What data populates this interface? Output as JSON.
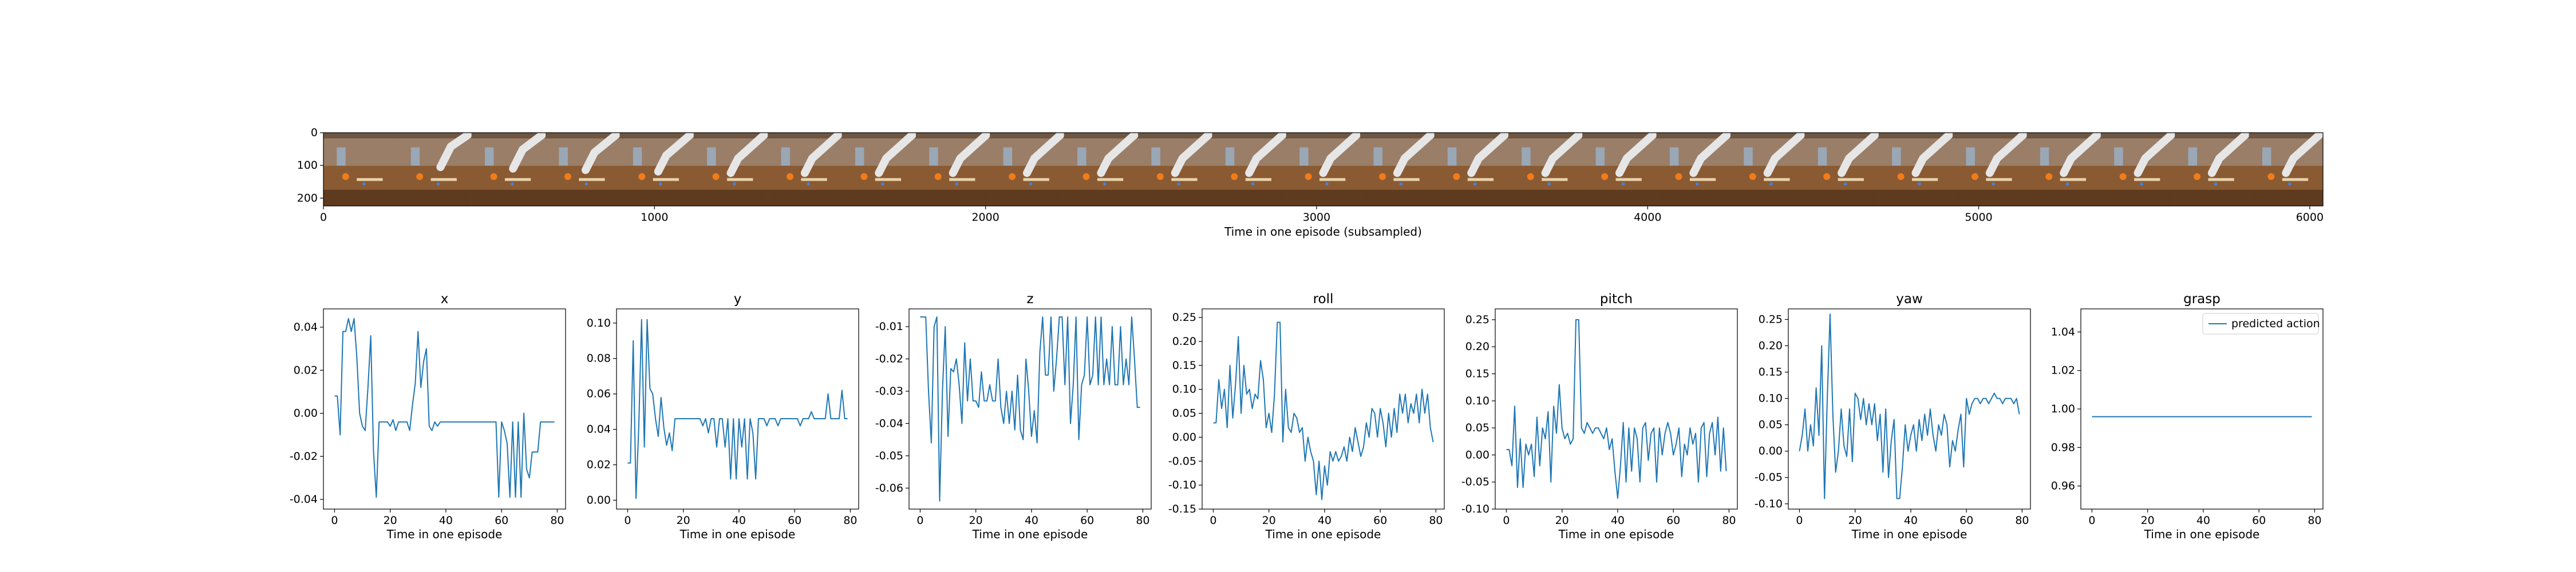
{
  "strip": {
    "xlabel": "Time in one episode (subsampled)",
    "xticks": [
      0,
      1000,
      2000,
      3000,
      4000,
      5000,
      6000
    ],
    "yticks": [
      0,
      100,
      200
    ],
    "xlim": [
      0,
      6040
    ],
    "ylim": [
      224,
      0
    ],
    "frame_count": 27,
    "colors": {
      "wall": "#9a7e68",
      "wall_dark": "#6f5642",
      "table": "#8a5a33",
      "table_dark": "#5e3a1e",
      "robot": "#e6e6e6",
      "orange": "#f07c1a",
      "blue": "#4a7fd0"
    }
  },
  "chart_data": [
    {
      "type": "line",
      "title": "x",
      "xlabel": "Time in one episode",
      "xlim": [
        -4,
        83
      ],
      "ylim": [
        -0.0445,
        0.0485
      ],
      "xticks": [
        0,
        20,
        40,
        60,
        80
      ],
      "yticks": [
        -0.04,
        -0.02,
        0.0,
        0.02,
        0.04
      ],
      "ytick_labels": [
        "-0.04",
        "-0.02",
        "0.00",
        "0.02",
        "0.04"
      ],
      "color": "#1f77b4",
      "values": [
        0.008,
        0.008,
        -0.01,
        0.038,
        0.038,
        0.044,
        0.038,
        0.044,
        0.026,
        0.0,
        -0.006,
        -0.008,
        0.012,
        0.036,
        -0.018,
        -0.039,
        -0.004,
        -0.004,
        -0.004,
        -0.004,
        -0.006,
        -0.003,
        -0.008,
        -0.004,
        -0.004,
        -0.004,
        -0.004,
        -0.008,
        0.004,
        0.014,
        0.038,
        0.012,
        0.024,
        0.03,
        -0.006,
        -0.008,
        -0.004,
        -0.006,
        -0.004,
        -0.004,
        -0.004,
        -0.004,
        -0.004,
        -0.004,
        -0.004,
        -0.004,
        -0.004,
        -0.004,
        -0.004,
        -0.004,
        -0.004,
        -0.004,
        -0.004,
        -0.004,
        -0.004,
        -0.004,
        -0.004,
        -0.004,
        -0.004,
        -0.039,
        -0.004,
        -0.008,
        -0.014,
        -0.039,
        -0.004,
        -0.039,
        -0.004,
        -0.039,
        0.0,
        -0.026,
        -0.03,
        -0.018,
        -0.018,
        -0.018,
        -0.004,
        -0.004,
        -0.004,
        -0.004,
        -0.004,
        -0.004
      ]
    },
    {
      "type": "line",
      "title": "y",
      "xlabel": "Time in one episode",
      "xlim": [
        -4,
        83
      ],
      "ylim": [
        -0.005,
        0.108
      ],
      "xticks": [
        0,
        20,
        40,
        60,
        80
      ],
      "yticks": [
        0.0,
        0.02,
        0.04,
        0.06,
        0.08,
        0.1
      ],
      "ytick_labels": [
        "0.00",
        "0.02",
        "0.04",
        "0.06",
        "0.08",
        "0.10"
      ],
      "color": "#1f77b4",
      "values": [
        0.021,
        0.021,
        0.09,
        0.001,
        0.042,
        0.102,
        0.03,
        0.102,
        0.063,
        0.06,
        0.046,
        0.036,
        0.058,
        0.041,
        0.031,
        0.038,
        0.028,
        0.046,
        0.046,
        0.046,
        0.046,
        0.046,
        0.046,
        0.046,
        0.046,
        0.046,
        0.046,
        0.042,
        0.046,
        0.038,
        0.046,
        0.046,
        0.03,
        0.046,
        0.046,
        0.03,
        0.046,
        0.012,
        0.046,
        0.012,
        0.046,
        0.03,
        0.046,
        0.012,
        0.046,
        0.038,
        0.012,
        0.046,
        0.046,
        0.046,
        0.042,
        0.046,
        0.046,
        0.046,
        0.042,
        0.046,
        0.046,
        0.046,
        0.046,
        0.046,
        0.046,
        0.046,
        0.042,
        0.046,
        0.046,
        0.046,
        0.05,
        0.046,
        0.046,
        0.046,
        0.046,
        0.046,
        0.06,
        0.046,
        0.046,
        0.046,
        0.046,
        0.062,
        0.046,
        0.046
      ]
    },
    {
      "type": "line",
      "title": "z",
      "xlabel": "Time in one episode",
      "xlim": [
        -4,
        83
      ],
      "ylim": [
        -0.0665,
        -0.0045
      ],
      "xticks": [
        0,
        20,
        40,
        60,
        80
      ],
      "yticks": [
        -0.06,
        -0.05,
        -0.04,
        -0.03,
        -0.02,
        -0.01
      ],
      "ytick_labels": [
        "-0.06",
        "-0.05",
        "-0.04",
        "-0.03",
        "-0.02",
        "-0.01"
      ],
      "color": "#1f77b4",
      "values": [
        -0.007,
        -0.007,
        -0.007,
        -0.03,
        -0.046,
        -0.01,
        -0.007,
        -0.064,
        -0.03,
        -0.01,
        -0.044,
        -0.023,
        -0.024,
        -0.02,
        -0.028,
        -0.04,
        -0.015,
        -0.033,
        -0.02,
        -0.033,
        -0.033,
        -0.035,
        -0.024,
        -0.033,
        -0.033,
        -0.028,
        -0.033,
        -0.033,
        -0.02,
        -0.035,
        -0.04,
        -0.03,
        -0.04,
        -0.03,
        -0.042,
        -0.025,
        -0.042,
        -0.045,
        -0.02,
        -0.03,
        -0.044,
        -0.036,
        -0.046,
        -0.018,
        -0.007,
        -0.025,
        -0.025,
        -0.007,
        -0.03,
        -0.02,
        -0.007,
        -0.007,
        -0.028,
        -0.007,
        -0.04,
        -0.028,
        -0.007,
        -0.045,
        -0.028,
        -0.025,
        -0.007,
        -0.028,
        -0.025,
        -0.007,
        -0.028,
        -0.007,
        -0.028,
        -0.02,
        -0.028,
        -0.01,
        -0.028,
        -0.028,
        -0.01,
        -0.028,
        -0.02,
        -0.028,
        -0.007,
        -0.02,
        -0.035,
        -0.035
      ]
    },
    {
      "type": "line",
      "title": "roll",
      "xlabel": "Time in one episode",
      "xlim": [
        -4,
        83
      ],
      "ylim": [
        -0.15,
        0.268
      ],
      "xticks": [
        0,
        20,
        40,
        60,
        80
      ],
      "yticks": [
        -0.15,
        -0.1,
        -0.05,
        0.0,
        0.05,
        0.1,
        0.15,
        0.2,
        0.25
      ],
      "ytick_labels": [
        "-0.15",
        "-0.10",
        "-0.05",
        "0.00",
        "0.05",
        "0.10",
        "0.15",
        "0.20",
        "0.25"
      ],
      "color": "#1f77b4",
      "values": [
        0.03,
        0.03,
        0.12,
        0.06,
        0.1,
        0.02,
        0.15,
        0.04,
        0.11,
        0.21,
        0.05,
        0.15,
        0.09,
        0.1,
        0.06,
        0.09,
        0.08,
        0.16,
        0.12,
        0.02,
        0.05,
        0.01,
        0.09,
        0.24,
        0.24,
        -0.01,
        0.1,
        0.02,
        0.01,
        0.05,
        0.04,
        0.01,
        0.02,
        -0.05,
        0.0,
        -0.03,
        -0.05,
        -0.12,
        -0.05,
        -0.13,
        -0.06,
        -0.1,
        -0.03,
        -0.05,
        -0.03,
        -0.05,
        -0.04,
        -0.02,
        -0.05,
        0.0,
        -0.03,
        0.02,
        -0.01,
        -0.04,
        -0.02,
        0.03,
        0.0,
        0.06,
        0.05,
        0.0,
        0.06,
        0.03,
        -0.02,
        0.05,
        0.0,
        0.06,
        0.01,
        0.09,
        0.05,
        0.09,
        0.03,
        0.07,
        0.05,
        0.09,
        0.03,
        0.1,
        0.05,
        0.09,
        0.02,
        -0.01
      ]
    },
    {
      "type": "line",
      "title": "pitch",
      "xlabel": "Time in one episode",
      "xlim": [
        -4,
        83
      ],
      "ylim": [
        -0.1,
        0.27
      ],
      "xticks": [
        0,
        20,
        40,
        60,
        80
      ],
      "yticks": [
        -0.1,
        -0.05,
        0.0,
        0.05,
        0.1,
        0.15,
        0.2,
        0.25
      ],
      "ytick_labels": [
        "-0.10",
        "-0.05",
        "0.00",
        "0.05",
        "0.10",
        "0.15",
        "0.20",
        "0.25"
      ],
      "color": "#1f77b4",
      "values": [
        0.01,
        0.01,
        -0.02,
        0.09,
        -0.06,
        0.03,
        -0.06,
        0.02,
        0.0,
        0.02,
        -0.04,
        0.07,
        -0.02,
        0.05,
        0.03,
        0.08,
        -0.05,
        0.09,
        0.04,
        0.13,
        0.05,
        0.03,
        0.04,
        0.02,
        0.03,
        0.25,
        0.25,
        0.05,
        0.04,
        0.06,
        0.05,
        0.04,
        0.05,
        0.05,
        0.04,
        0.03,
        0.05,
        0.01,
        0.03,
        -0.03,
        -0.08,
        -0.02,
        0.06,
        -0.05,
        0.05,
        -0.03,
        0.05,
        0.03,
        -0.05,
        0.05,
        0.06,
        -0.01,
        0.04,
        0.05,
        -0.05,
        0.05,
        0.0,
        0.04,
        0.06,
        0.04,
        0.0,
        0.02,
        0.05,
        -0.04,
        0.02,
        0.0,
        0.05,
        0.02,
        0.04,
        -0.05,
        0.05,
        0.06,
        -0.04,
        0.04,
        0.06,
        0.0,
        0.07,
        -0.03,
        0.05,
        -0.03
      ]
    },
    {
      "type": "line",
      "title": "yaw",
      "xlabel": "Time in one episode",
      "xlim": [
        -4,
        83
      ],
      "ylim": [
        -0.11,
        0.27
      ],
      "xticks": [
        0,
        20,
        40,
        60,
        80
      ],
      "yticks": [
        -0.1,
        -0.05,
        0.0,
        0.05,
        0.1,
        0.15,
        0.2,
        0.25
      ],
      "ytick_labels": [
        "-0.10",
        "-0.05",
        "0.00",
        "0.05",
        "0.10",
        "0.15",
        "0.20",
        "0.25"
      ],
      "color": "#1f77b4",
      "values": [
        0.0,
        0.03,
        0.08,
        0.0,
        0.05,
        0.01,
        0.12,
        0.03,
        0.2,
        -0.09,
        0.1,
        0.26,
        0.07,
        -0.04,
        0.0,
        0.08,
        0.01,
        -0.01,
        0.08,
        -0.02,
        0.11,
        0.1,
        0.06,
        0.1,
        0.05,
        0.09,
        0.05,
        0.09,
        0.02,
        0.07,
        -0.04,
        0.08,
        -0.05,
        0.02,
        0.06,
        -0.09,
        -0.09,
        -0.03,
        0.05,
        0.0,
        0.03,
        0.05,
        0.0,
        0.06,
        0.02,
        0.07,
        0.03,
        0.08,
        0.03,
        0.0,
        0.05,
        0.03,
        0.07,
        0.05,
        -0.03,
        0.02,
        0.0,
        0.04,
        0.07,
        -0.03,
        0.1,
        0.07,
        0.09,
        0.1,
        0.1,
        0.09,
        0.1,
        0.1,
        0.09,
        0.1,
        0.11,
        0.1,
        0.1,
        0.09,
        0.1,
        0.1,
        0.1,
        0.09,
        0.1,
        0.07
      ]
    },
    {
      "type": "line",
      "title": "grasp",
      "xlabel": "Time in one episode",
      "xlim": [
        -4,
        83
      ],
      "ylim": [
        0.948,
        1.052
      ],
      "xticks": [
        0,
        20,
        40,
        60,
        80
      ],
      "yticks": [
        0.96,
        0.98,
        1.0,
        1.02,
        1.04
      ],
      "ytick_labels": [
        "0.96",
        "0.98",
        "1.00",
        "1.02",
        "1.04"
      ],
      "color": "#1f77b4",
      "legend": {
        "label": "predicted action",
        "loc": "upper right"
      },
      "values": [
        0.996,
        0.996,
        0.996,
        0.996,
        0.996,
        0.996,
        0.996,
        0.996,
        0.996,
        0.996,
        0.996,
        0.996,
        0.996,
        0.996,
        0.996,
        0.996,
        0.996,
        0.996,
        0.996,
        0.996,
        0.996,
        0.996,
        0.996,
        0.996,
        0.996,
        0.996,
        0.996,
        0.996,
        0.996,
        0.996,
        0.996,
        0.996,
        0.996,
        0.996,
        0.996,
        0.996,
        0.996,
        0.996,
        0.996,
        0.996,
        0.996,
        0.996,
        0.996,
        0.996,
        0.996,
        0.996,
        0.996,
        0.996,
        0.996,
        0.996,
        0.996,
        0.996,
        0.996,
        0.996,
        0.996,
        0.996,
        0.996,
        0.996,
        0.996,
        0.996,
        0.996,
        0.996,
        0.996,
        0.996,
        0.996,
        0.996,
        0.996,
        0.996,
        0.996,
        0.996,
        0.996,
        0.996,
        0.996,
        0.996,
        0.996,
        0.996,
        0.996,
        0.996,
        0.996,
        0.996
      ]
    }
  ]
}
